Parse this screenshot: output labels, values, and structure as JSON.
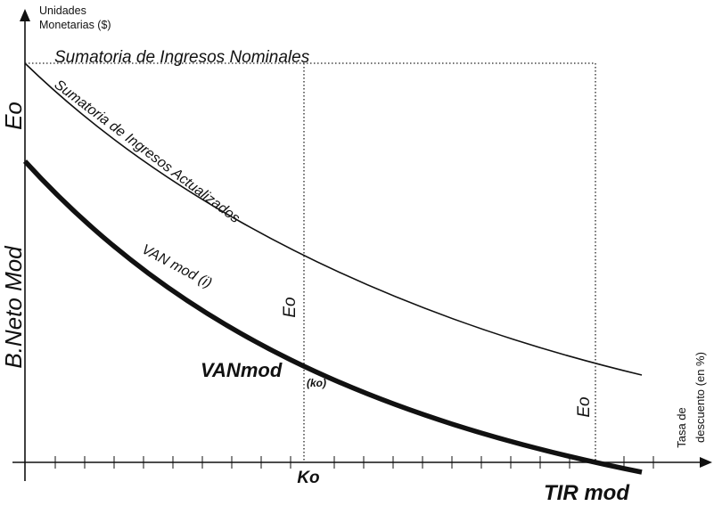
{
  "axes": {
    "y_label_line1": "Unidades",
    "y_label_line2": "Monetarias ($)",
    "x_label_line1": "Tasa de",
    "x_label_line2": "descuento (en %)"
  },
  "curves": {
    "nominal": "Sumatoria de Ingresos Nominales",
    "actualizados": "Sumatoria de Ingresos Actualizados",
    "van_mod": "VAN mod (i)"
  },
  "side_labels": {
    "eo": "Eo",
    "beneficio_neto": "B.Neto Mod"
  },
  "markers": {
    "eo_at_ko": "Eo",
    "eo_at_tir": "Eo",
    "vanmod_main": "VANmod",
    "vanmod_sub": "(ko)",
    "ko": "Ko",
    "tir": "TIR mod"
  },
  "colors": {
    "ink": "#111111",
    "background": "#ffffff"
  }
}
